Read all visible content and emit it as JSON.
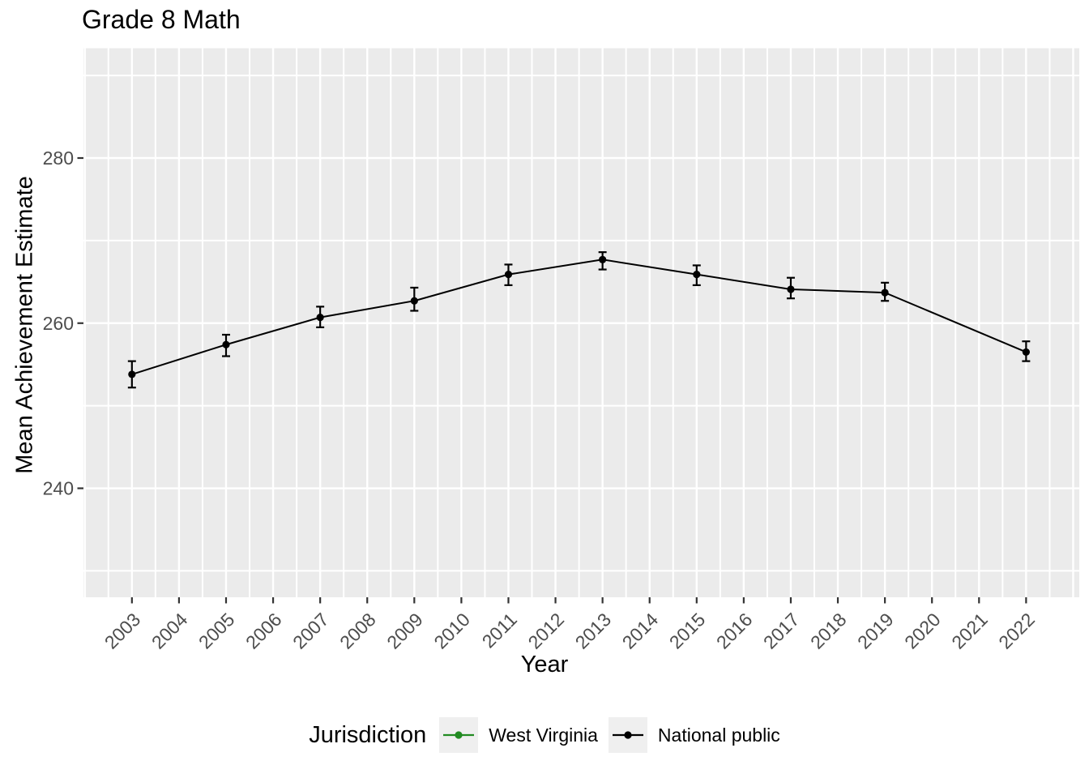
{
  "title": "Grade 8 Math",
  "colors": {
    "panel_bg": "#EBEBEB",
    "grid": "#FFFFFF",
    "tick": "#333333",
    "axis_text": "#4D4D4D",
    "legend_key_bg": "#EFEFEF",
    "text": "#000000",
    "west_virginia": "#228B22",
    "national_public": "#000000"
  },
  "chart_data": {
    "type": "line",
    "title": "Grade 8 Math",
    "xlabel": "Year",
    "ylabel": "Mean Achievement Estimate",
    "x_ticks": [
      2003,
      2004,
      2005,
      2006,
      2007,
      2008,
      2009,
      2010,
      2011,
      2012,
      2013,
      2014,
      2015,
      2016,
      2017,
      2018,
      2019,
      2020,
      2021,
      2022
    ],
    "y_ticks": [
      240,
      260,
      280
    ],
    "y_minor": [
      230,
      250,
      270,
      290
    ],
    "xlim": [
      2001.97,
      2023.13
    ],
    "ylim": [
      226.8,
      293.3
    ],
    "grid": true,
    "legend": {
      "title": "Jurisdiction",
      "position": "bottom",
      "entries": [
        {
          "label": "West Virginia",
          "color": "#228B22"
        },
        {
          "label": "National public",
          "color": "#000000"
        }
      ]
    },
    "series": [
      {
        "name": "National public",
        "color": "#000000",
        "x": [
          2003,
          2005,
          2007,
          2009,
          2011,
          2013,
          2015,
          2017,
          2019,
          2022
        ],
        "y": [
          253.8,
          257.4,
          260.7,
          262.7,
          265.9,
          267.7,
          265.9,
          264.1,
          263.7,
          256.5
        ],
        "ci_low": [
          252.2,
          256.0,
          259.5,
          261.5,
          264.6,
          266.5,
          264.6,
          263.0,
          262.7,
          255.4
        ],
        "ci_high": [
          255.4,
          258.6,
          262.0,
          264.3,
          267.1,
          268.6,
          267.0,
          265.5,
          264.9,
          257.8
        ]
      }
    ]
  }
}
